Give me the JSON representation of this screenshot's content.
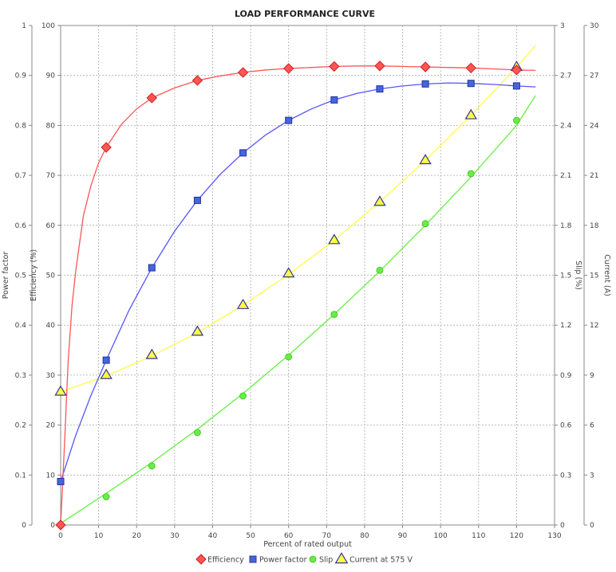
{
  "chart_data": {
    "type": "line",
    "title": "LOAD PERFORMANCE CURVE",
    "xlabel": "Percent of rated output",
    "x_ticks": [
      "0",
      "10",
      "20",
      "30",
      "40",
      "50",
      "60",
      "70",
      "80",
      "90",
      "100",
      "110",
      "120",
      "130"
    ],
    "xlim": [
      0,
      130
    ],
    "grid": true,
    "legend_position": "bottom",
    "axes": {
      "power_factor": {
        "label": "Power factor",
        "side": "left-outer",
        "range": [
          0,
          1
        ],
        "ticks": [
          "0",
          "0.1",
          "0.2",
          "0.3",
          "0.4",
          "0.5",
          "0.6",
          "0.7",
          "0.8",
          "0.9",
          "1"
        ]
      },
      "efficiency": {
        "label": "Efficiency (%)",
        "side": "left",
        "range": [
          0,
          100
        ],
        "ticks": [
          "0",
          "10",
          "20",
          "30",
          "40",
          "50",
          "60",
          "70",
          "80",
          "90",
          "100"
        ]
      },
      "slip": {
        "label": "Slip (%)",
        "side": "right",
        "range": [
          0,
          3
        ],
        "ticks": [
          "0",
          "0.3",
          "0.6",
          "0.9",
          "1.2",
          "1.5",
          "1.8",
          "2.1",
          "2.4",
          "2.7",
          "3"
        ]
      },
      "current": {
        "label": "Current (A)",
        "side": "right-outer",
        "range": [
          0,
          30
        ],
        "ticks": [
          "0",
          "3",
          "6",
          "9",
          "12",
          "15",
          "18",
          "21",
          "24",
          "27",
          "30"
        ]
      }
    },
    "series": [
      {
        "name": "Efficiency",
        "axis": "efficiency",
        "color": "#ff5555",
        "marker": "diamond",
        "points": [
          [
            0,
            0
          ],
          [
            12,
            75.6
          ],
          [
            24,
            85.5
          ],
          [
            36,
            89
          ],
          [
            48,
            90.6
          ],
          [
            60,
            91.4
          ],
          [
            72,
            91.8
          ],
          [
            84,
            91.9
          ],
          [
            96,
            91.7
          ],
          [
            108,
            91.5
          ],
          [
            120,
            91.1
          ]
        ],
        "curve": [
          [
            0,
            0
          ],
          [
            1,
            16
          ],
          [
            2,
            33
          ],
          [
            3,
            44
          ],
          [
            4,
            51
          ],
          [
            6,
            62
          ],
          [
            8,
            68
          ],
          [
            10,
            72.5
          ],
          [
            12,
            75.6
          ],
          [
            16,
            80.2
          ],
          [
            20,
            83.3
          ],
          [
            24,
            85.5
          ],
          [
            30,
            87.5
          ],
          [
            36,
            89
          ],
          [
            42,
            89.9
          ],
          [
            48,
            90.6
          ],
          [
            54,
            91.1
          ],
          [
            60,
            91.4
          ],
          [
            66,
            91.6
          ],
          [
            72,
            91.8
          ],
          [
            78,
            91.9
          ],
          [
            84,
            91.9
          ],
          [
            90,
            91.8
          ],
          [
            96,
            91.7
          ],
          [
            102,
            91.6
          ],
          [
            108,
            91.5
          ],
          [
            114,
            91.3
          ],
          [
            120,
            91.1
          ],
          [
            125,
            91
          ]
        ]
      },
      {
        "name": "Power factor",
        "axis": "power_factor",
        "color": "#5555ff",
        "marker": "square",
        "points": [
          [
            0,
            0.087
          ],
          [
            12,
            0.33
          ],
          [
            24,
            0.515
          ],
          [
            36,
            0.65
          ],
          [
            48,
            0.745
          ],
          [
            60,
            0.81
          ],
          [
            72,
            0.851
          ],
          [
            84,
            0.873
          ],
          [
            96,
            0.883
          ],
          [
            108,
            0.884
          ],
          [
            120,
            0.879
          ]
        ],
        "curve": [
          [
            0,
            0.087
          ],
          [
            4,
            0.18
          ],
          [
            8,
            0.26
          ],
          [
            12,
            0.33
          ],
          [
            18,
            0.43
          ],
          [
            24,
            0.515
          ],
          [
            30,
            0.588
          ],
          [
            36,
            0.65
          ],
          [
            42,
            0.702
          ],
          [
            48,
            0.745
          ],
          [
            54,
            0.781
          ],
          [
            60,
            0.81
          ],
          [
            66,
            0.833
          ],
          [
            72,
            0.851
          ],
          [
            78,
            0.864
          ],
          [
            84,
            0.873
          ],
          [
            90,
            0.879
          ],
          [
            96,
            0.883
          ],
          [
            102,
            0.885
          ],
          [
            108,
            0.884
          ],
          [
            114,
            0.882
          ],
          [
            120,
            0.879
          ],
          [
            125,
            0.877
          ]
        ]
      },
      {
        "name": "Slip",
        "axis": "slip",
        "color": "#66ee44",
        "marker": "circle",
        "points": [
          [
            12,
            0.17
          ],
          [
            24,
            0.355
          ],
          [
            36,
            0.555
          ],
          [
            48,
            0.775
          ],
          [
            60,
            1.01
          ],
          [
            72,
            1.265
          ],
          [
            84,
            1.53
          ],
          [
            96,
            1.81
          ],
          [
            108,
            2.11
          ],
          [
            120,
            2.43
          ]
        ],
        "curve": [
          [
            0,
            0.01
          ],
          [
            12,
            0.19
          ],
          [
            24,
            0.375
          ],
          [
            36,
            0.575
          ],
          [
            48,
            0.79
          ],
          [
            60,
            1.02
          ],
          [
            72,
            1.265
          ],
          [
            84,
            1.525
          ],
          [
            96,
            1.8
          ],
          [
            108,
            2.09
          ],
          [
            120,
            2.4
          ],
          [
            125,
            2.58
          ]
        ]
      },
      {
        "name": "Current at 575 V",
        "axis": "current",
        "color": "#ffff44",
        "marker": "triangle",
        "points": [
          [
            0,
            8
          ],
          [
            12,
            9
          ],
          [
            24,
            10.2
          ],
          [
            36,
            11.6
          ],
          [
            48,
            13.2
          ],
          [
            60,
            15.1
          ],
          [
            72,
            17.1
          ],
          [
            84,
            19.4
          ],
          [
            96,
            21.9
          ],
          [
            108,
            24.6
          ],
          [
            120,
            27.5
          ]
        ],
        "curve": [
          [
            0,
            8
          ],
          [
            12,
            8.95
          ],
          [
            24,
            10.15
          ],
          [
            36,
            11.55
          ],
          [
            48,
            13.2
          ],
          [
            60,
            15.05
          ],
          [
            72,
            17.1
          ],
          [
            84,
            19.4
          ],
          [
            96,
            21.9
          ],
          [
            108,
            24.6
          ],
          [
            120,
            27.5
          ],
          [
            125,
            28.8
          ]
        ]
      }
    ]
  }
}
